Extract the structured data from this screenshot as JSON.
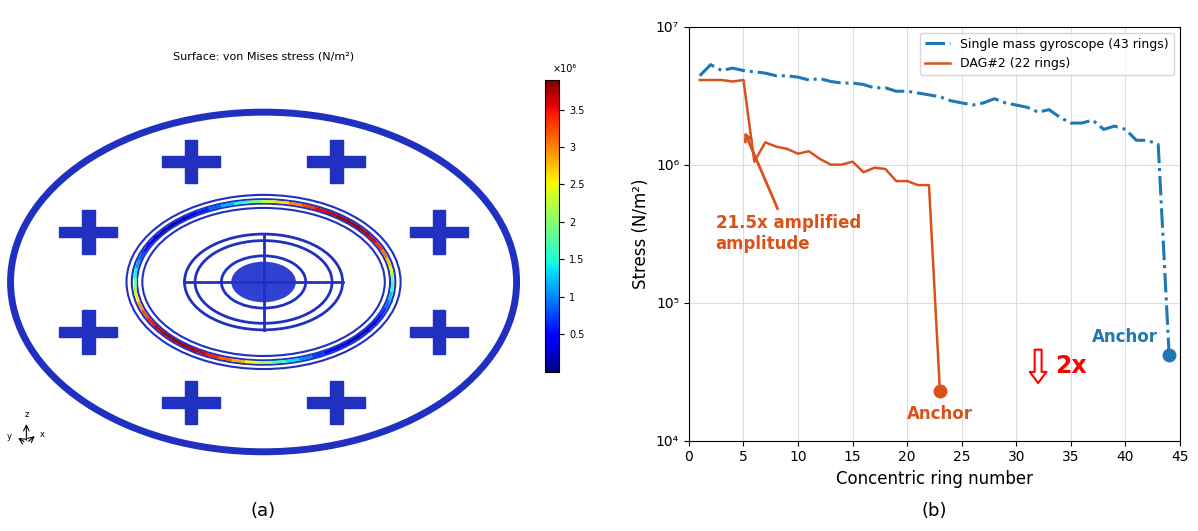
{
  "panels": [
    {
      "label": "(a)",
      "type": "fem_render",
      "title": "Surface: von Mises stress (N/m²)",
      "colorbar": {
        "multiplier": "×10⁶",
        "range": [
          0,
          3.9
        ],
        "ticks": [
          0.5,
          1,
          1.5,
          2,
          2.5,
          3,
          3.5
        ]
      },
      "axes_triad": [
        "y",
        "x",
        "z"
      ]
    },
    {
      "label": "(b)"
    }
  ],
  "chart_data": {
    "type": "line",
    "x_label": "Concentric ring number",
    "y_label": "Stress (N/m²)",
    "log": "y",
    "grid": true,
    "legend": "upper right",
    "xlim": [
      0,
      45
    ],
    "xticks": [
      0,
      5,
      10,
      15,
      20,
      25,
      30,
      35,
      40,
      45
    ],
    "ylim": [
      10000,
      10000000
    ],
    "yticks": [
      {
        "value": 10000,
        "label": "10⁴"
      },
      {
        "value": 100000,
        "label": "10⁵"
      },
      {
        "value": 1000000,
        "label": "10⁶"
      },
      {
        "value": 10000000,
        "label": "10⁷"
      }
    ],
    "series": [
      {
        "name": "Single mass gyroscope (43 rings)",
        "color": "#1f77b4",
        "line_style": "dashdot",
        "x": [
          1,
          2,
          3,
          4,
          5,
          6,
          7,
          8,
          9,
          10,
          11,
          12,
          13,
          14,
          15,
          16,
          17,
          18,
          19,
          20,
          21,
          22,
          23,
          24,
          25,
          26,
          27,
          28,
          29,
          30,
          31,
          32,
          33,
          34,
          35,
          36,
          37,
          38,
          39,
          40,
          41,
          42,
          43,
          44
        ],
        "values": [
          4400000,
          5300000,
          4800000,
          5000000,
          4800000,
          4700000,
          4600000,
          4400000,
          4400000,
          4300000,
          4100000,
          4200000,
          4000000,
          3900000,
          3900000,
          3800000,
          3600000,
          3600000,
          3400000,
          3400000,
          3300000,
          3200000,
          3100000,
          2900000,
          2800000,
          2700000,
          2800000,
          3000000,
          2800000,
          2700000,
          2600000,
          2400000,
          2500000,
          2200000,
          2000000,
          2000000,
          2100000,
          1800000,
          1900000,
          1800000,
          1500000,
          1500000,
          1400000,
          42000
        ]
      },
      {
        "name": "DAG#2 (22 rings)",
        "color": "#d95319",
        "line_style": "solid",
        "x": [
          1,
          2,
          3,
          4,
          5,
          6,
          7,
          8,
          9,
          10,
          11,
          12,
          13,
          14,
          15,
          16,
          17,
          18,
          19,
          20,
          21,
          22,
          23
        ],
        "values": [
          4100000,
          4100000,
          4100000,
          4000000,
          4100000,
          1050000,
          1450000,
          1350000,
          1300000,
          1200000,
          1250000,
          1100000,
          1000000,
          1000000,
          1050000,
          880000,
          950000,
          930000,
          760000,
          760000,
          710000,
          710000,
          23000
        ]
      }
    ],
    "annotations": [
      {
        "text": "21.5x amplified\namplitude",
        "x": 5,
        "y": 1800000,
        "color": "#d95319"
      },
      {
        "text": "Anchor",
        "x": 23,
        "y": 23000,
        "color": "#d95319",
        "marker": "circle"
      },
      {
        "text": "Anchor",
        "x": 44,
        "y": 42000,
        "color": "#1f77b4",
        "marker": "circle"
      },
      {
        "text": "2x",
        "x": 32,
        "y": 25000,
        "color": "#ff0000"
      }
    ]
  }
}
